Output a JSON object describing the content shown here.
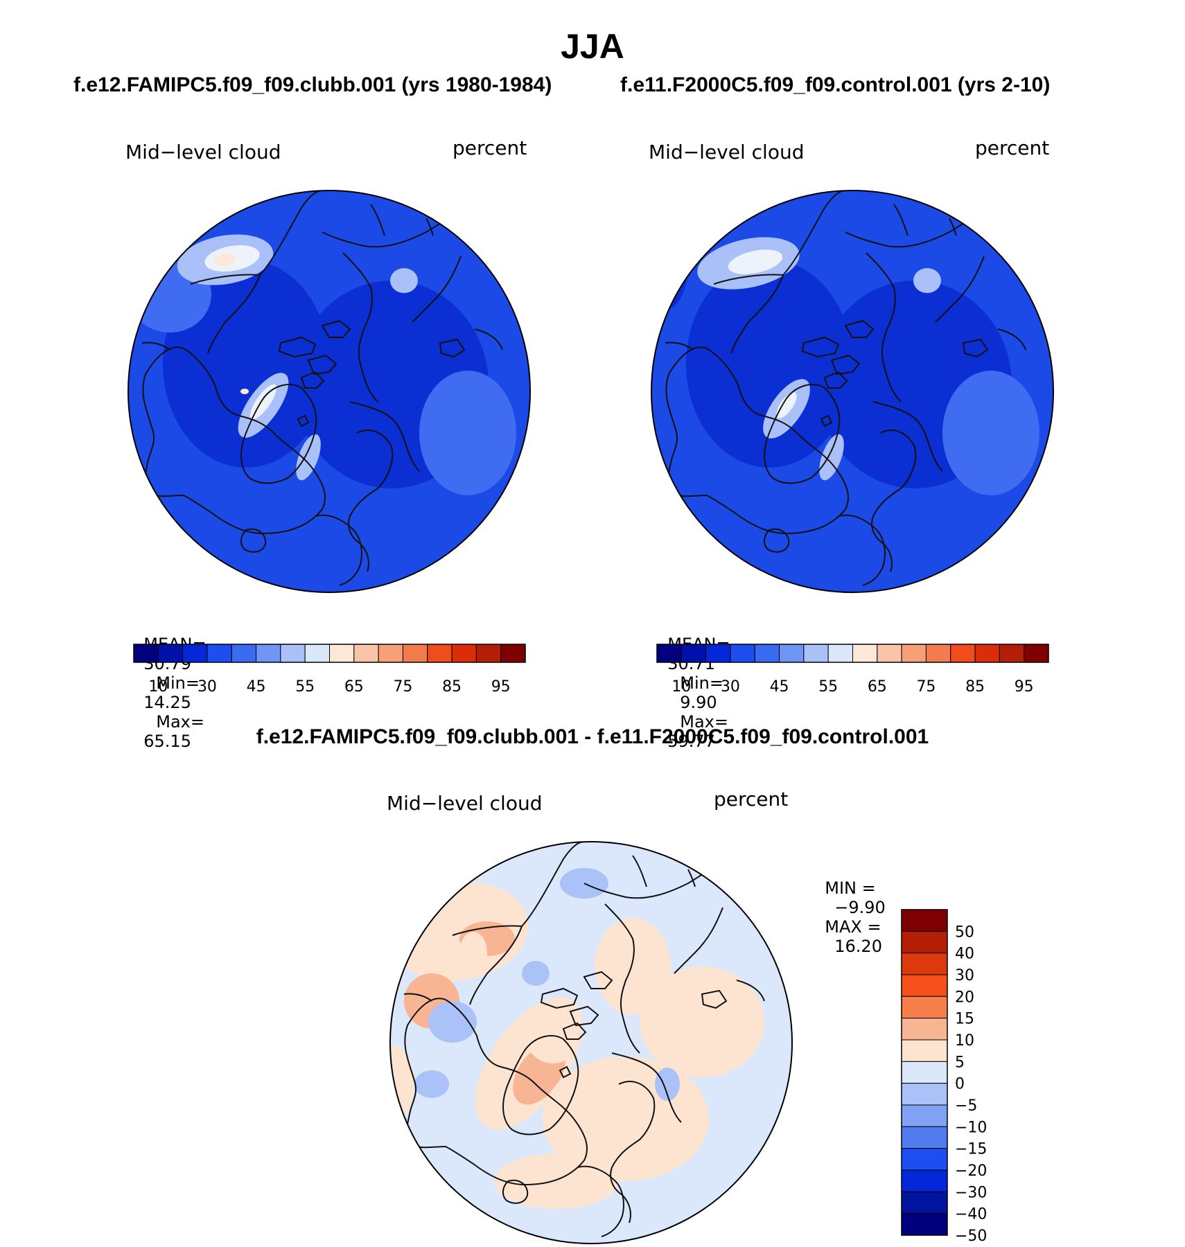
{
  "title": "JJA",
  "panels": [
    {
      "case_title": "f.e12.FAMIPC5.f09_f09.clubb.001 (yrs 1980-1984)",
      "variable": "Mid−level cloud",
      "units": "percent",
      "stats": {
        "mean_label": "MEAN=",
        "mean": "30.79",
        "min_label": "Min=",
        "min": "14.25",
        "max_label": "Max=",
        "max": "65.15"
      }
    },
    {
      "case_title": "f.e11.F2000C5.f09_f09.control.001 (yrs 2-10)",
      "variable": "Mid−level cloud",
      "units": "percent",
      "stats": {
        "mean_label": "MEAN=",
        "mean": "30.71",
        "min_label": "Min=",
        "min": "9.90",
        "max_label": "Max=",
        "max": "59.77"
      }
    }
  ],
  "abs_colorbar": {
    "colors": [
      "#00007f",
      "#0010a8",
      "#0428d8",
      "#1e4df0",
      "#3a6bf2",
      "#6f95f5",
      "#a9c1f8",
      "#dbe8fb",
      "#fde8d8",
      "#f9c4a8",
      "#f7a078",
      "#f47b4e",
      "#f04d1f",
      "#dc2d0b",
      "#b41e07",
      "#7f0000"
    ],
    "tick_labels": [
      "10",
      "30",
      "45",
      "55",
      "65",
      "75",
      "85",
      "95"
    ]
  },
  "diff_panel": {
    "title": "f.e12.FAMIPC5.f09_f09.clubb.001 - f.e11.F2000C5.f09_f09.control.001",
    "variable": "Mid−level cloud",
    "units": "percent",
    "stats": {
      "min_label": "MIN =",
      "min": "−9.90",
      "max_label": "MAX =",
      "max": "16.20"
    }
  },
  "diff_colorbar": {
    "colors": [
      "#7f0000",
      "#b41e07",
      "#dc3a0c",
      "#f6511d",
      "#f7804a",
      "#f8b593",
      "#fde4d0",
      "#dbe8fb",
      "#aac2f8",
      "#7fa2f5",
      "#4f7df0",
      "#1e4df0",
      "#0428d8",
      "#0014a0",
      "#00007f"
    ],
    "tick_labels": [
      "50",
      "40",
      "30",
      "20",
      "15",
      "10",
      "5",
      "0",
      "−5",
      "−10",
      "−15",
      "−20",
      "−30",
      "−40",
      "−50"
    ]
  },
  "map_palette": {
    "abs_base": "#1c4ae6",
    "abs_dark": "#0c2fd4",
    "abs_mid": "#3f6cf0",
    "abs_light": "#a9c1f8",
    "abs_white": "#eef2fb",
    "abs_peach": "#fde8d8",
    "diff_base": "#dbe8fb",
    "diff_peach": "#fde4d0",
    "diff_orange": "#f8b593",
    "diff_lightblue": "#aac2f8",
    "coast": "#111111"
  }
}
